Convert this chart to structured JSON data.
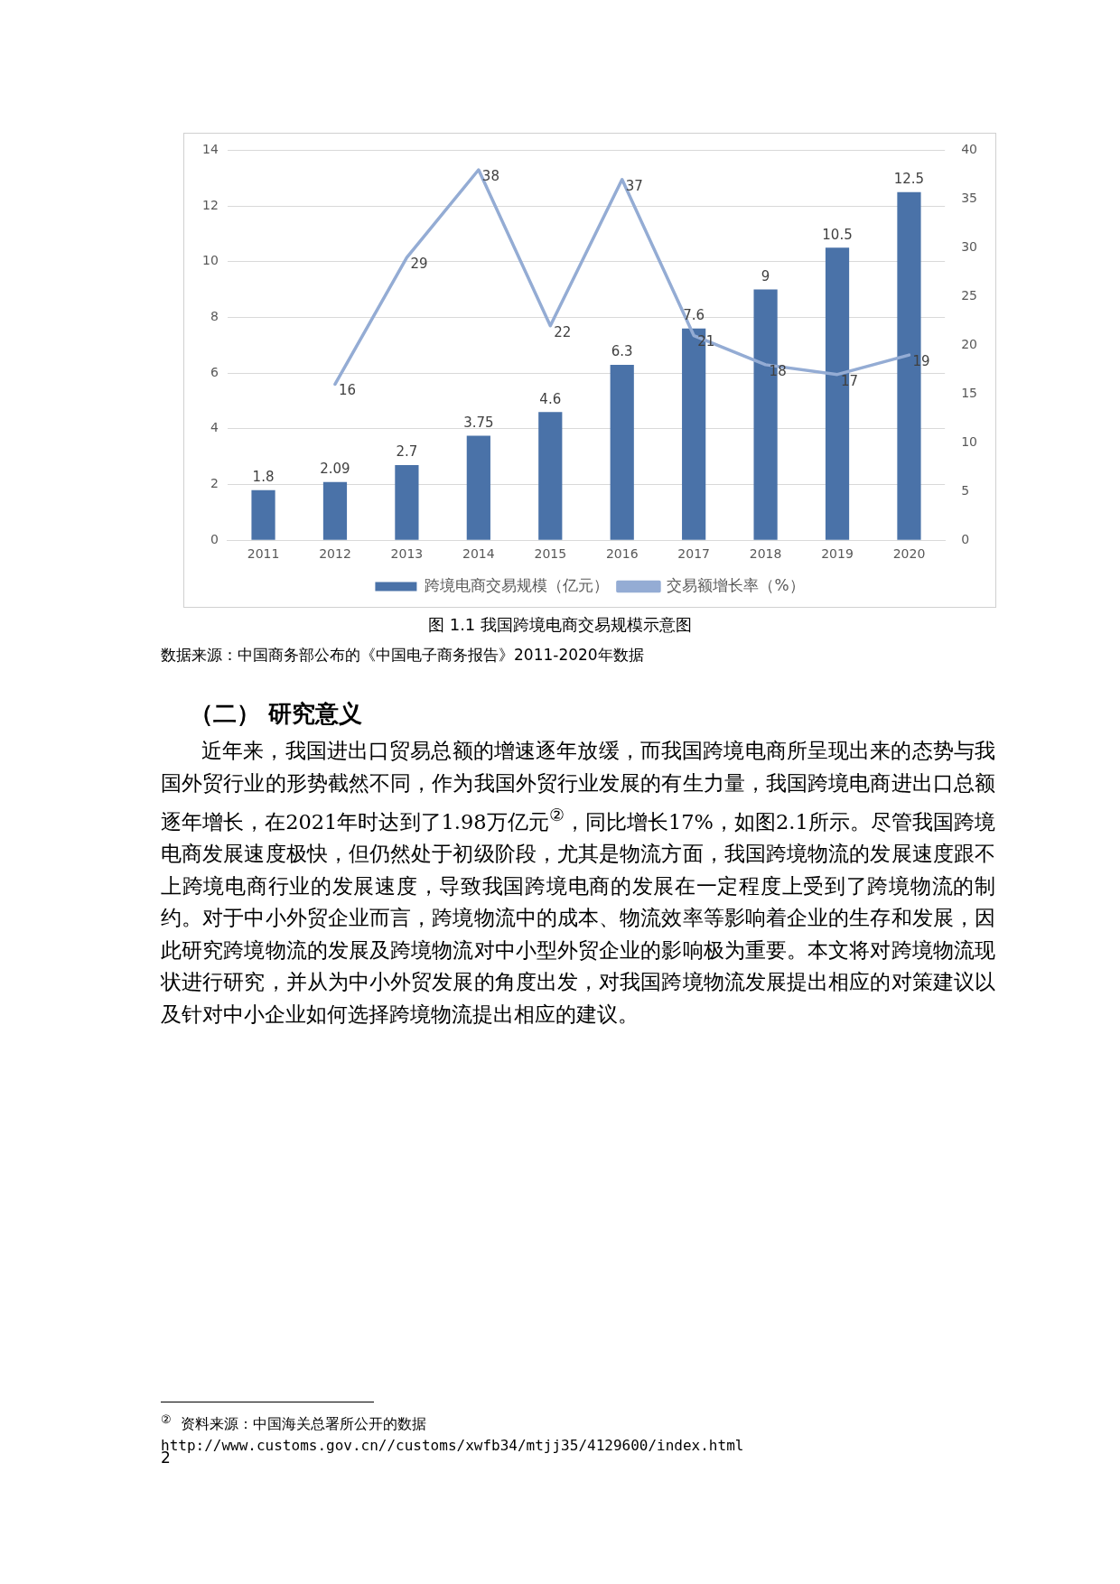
{
  "chart_data": {
    "type": "bar",
    "title": "图  1.1 我国跨境电商交易规模示意图",
    "categories": [
      "2011",
      "2012",
      "2013",
      "2014",
      "2015",
      "2016",
      "2017",
      "2018",
      "2019",
      "2020"
    ],
    "series": [
      {
        "name": "跨境电商交易规模（亿元）",
        "color": "#4a72a8",
        "values": [
          1.8,
          2.09,
          2.7,
          3.75,
          4.6,
          6.3,
          7.6,
          9,
          10.5,
          12.5
        ]
      },
      {
        "name": "交易额增长率（%）",
        "type": "line",
        "axis": "y2",
        "color": "#94acd4",
        "values": [
          null,
          16,
          29,
          38,
          22,
          37,
          21,
          18,
          17,
          19
        ]
      }
    ],
    "ylim": [
      0,
      14
    ],
    "yticks": [
      0,
      2,
      4,
      6,
      8,
      10,
      12,
      14
    ],
    "y2lim": [
      0,
      40
    ],
    "y2ticks": [
      0,
      5,
      10,
      15,
      20,
      25,
      30,
      35,
      40
    ],
    "grid": "y",
    "legend": "bottom",
    "marker": "none",
    "line_style": "solid",
    "data_labels": true,
    "annotations": [
      "数据来源：中国商务部公布的《中国电子商务报告》2011-2020年数据",
      "（二）  研究意义",
      "近年来，我国进出口贸易总额的增速逐年放缓，而我国跨境电商所呈现出来的态势与我国外贸行业的形势截然不同，作为我国外贸行业发展的有生力量，我国跨境电商进出口总额逐年增长，在2021年时达到了1.98万亿元$^{②}$，同比增长17%，如图2.1所示。尽管我国跨境电商发展速度极快，但仍然处于初级阶段，尤其是物流方面，我国跨境物流的发展速度跟不上跨境电商行业的发展速度，导致我国跨境电商的发展在一定程度上受到了跨境物流的制约。对于中小外贸企业而言，跨境物流中的成本、物流效率等影响着企业的生存和发展，因此研究跨境物流的发展及跨境物流对中小型外贸企业的影响极为重要。本文将对跨境物流现状进行研究，并从为中小外贸发展的角度出发，对我国跨境物流发展提出相应的对策建议以及针对中小企业如何选择跨境物流提出相应的建议。",
      "$^{②}$ 资料来源：中国海关总署所公开的数据http://www.customs.gov.cn//customs/xwfb34/mtjj35/4129600/index.html",
      "2"
    ]
  }
}
